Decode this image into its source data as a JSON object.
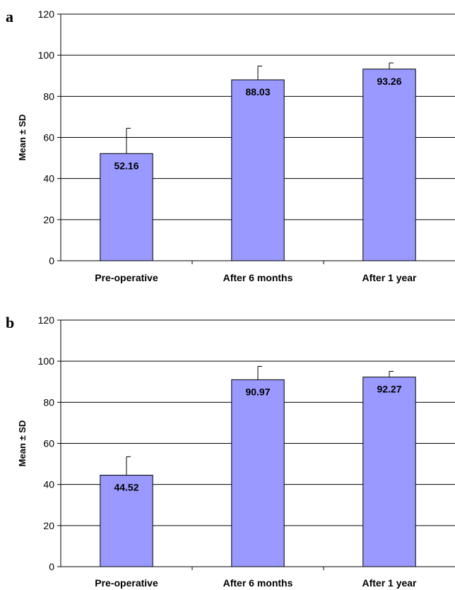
{
  "chart_data": [
    {
      "type": "bar",
      "panel_label": "a",
      "categories": [
        "Pre-operative",
        "After 6 months",
        "After 1 year"
      ],
      "values": [
        52.16,
        88.03,
        93.26
      ],
      "error": [
        12.3,
        6.7,
        3.0
      ],
      "data_labels": [
        "52.16",
        "88.03",
        "93.26"
      ],
      "ylabel": "Mean ± SD",
      "ylim": [
        0,
        120
      ],
      "yticks": [
        0,
        20,
        40,
        60,
        80,
        100,
        120
      ],
      "grid": true,
      "bar_color": "#9999ff"
    },
    {
      "type": "bar",
      "panel_label": "b",
      "categories": [
        "Pre-operative",
        "After 6 months",
        "After 1 year"
      ],
      "values": [
        44.52,
        90.97,
        92.27
      ],
      "error": [
        9.0,
        6.5,
        2.8
      ],
      "data_labels": [
        "44.52",
        "90.97",
        "92.27"
      ],
      "ylabel": "Mean ± SD",
      "ylim": [
        0,
        120
      ],
      "yticks": [
        0,
        20,
        40,
        60,
        80,
        100,
        120
      ],
      "grid": true,
      "bar_color": "#9999ff"
    }
  ]
}
